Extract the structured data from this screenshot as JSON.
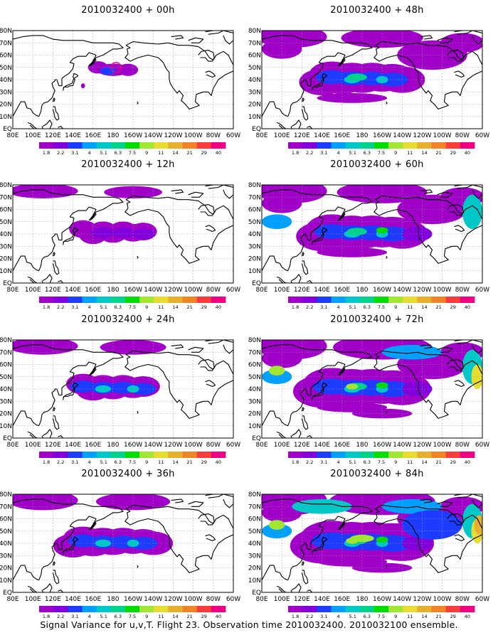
{
  "panels": [
    {
      "title": "2010032400 + 00h",
      "level": 0
    },
    {
      "title": "2010032400 + 48h",
      "level": 4
    },
    {
      "title": "2010032400 + 12h",
      "level": 1
    },
    {
      "title": "2010032400 + 60h",
      "level": 5
    },
    {
      "title": "2010032400 + 24h",
      "level": 2
    },
    {
      "title": "2010032400 + 72h",
      "level": 6
    },
    {
      "title": "2010032400 + 36h",
      "level": 3
    },
    {
      "title": "2010032400 + 84h",
      "level": 7
    }
  ],
  "lon_labels": [
    "80E",
    "100E",
    "120E",
    "140E",
    "160E",
    "180",
    "160W",
    "140W",
    "120W",
    "100W",
    "80W",
    "60W"
  ],
  "lat_labels": [
    "EQ",
    "10N",
    "20N",
    "30N",
    "40N",
    "50N",
    "60N",
    "70N",
    "80N"
  ],
  "colorbar": {
    "levels": [
      "1.8",
      "2.2",
      "3.1",
      "4",
      "5.1",
      "6.3",
      "7.5",
      "9",
      "11",
      "14",
      "21",
      "29",
      "40"
    ],
    "colors": [
      "#a000c8",
      "#8200dc",
      "#1e3cff",
      "#00a0ff",
      "#00c8c8",
      "#00d28c",
      "#00dc00",
      "#a0e632",
      "#e6dc32",
      "#e6af2d",
      "#f08228",
      "#fa3c3c",
      "#f00082"
    ]
  },
  "footer": "Signal Variance for u,v,T. Flight 23. Observation time 2010032400. 2010032100 ensemble."
}
